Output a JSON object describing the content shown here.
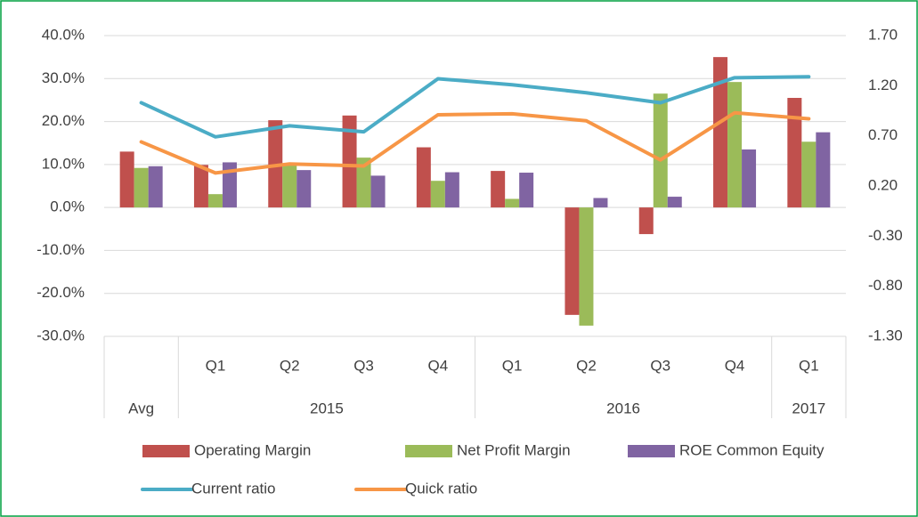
{
  "chart_data": {
    "type": "combo",
    "categories": [
      null,
      "Q1",
      "Q2",
      "Q3",
      "Q4",
      "Q1",
      "Q2",
      "Q3",
      "Q4",
      "Q1"
    ],
    "groups": [
      {
        "name": "Avg",
        "count": 1
      },
      {
        "name": "2015",
        "count": 4
      },
      {
        "name": "2016",
        "count": 4
      },
      {
        "name": "2017",
        "count": 1
      }
    ],
    "series": [
      {
        "name": "Operating Margin",
        "kind": "bar",
        "color": "#c0504d",
        "values": [
          13,
          9.9,
          20.3,
          21.4,
          14,
          8.5,
          -25,
          -6.2,
          35,
          25.5
        ]
      },
      {
        "name": "Net Profit Margin",
        "kind": "bar",
        "color": "#9bbb59",
        "values": [
          9.2,
          3.1,
          10,
          11.6,
          6.2,
          2,
          -27.5,
          26.5,
          29.2,
          15.3
        ]
      },
      {
        "name": "ROE Common Equity",
        "kind": "bar",
        "color": "#8064a2",
        "values": [
          9.6,
          10.5,
          8.7,
          7.4,
          8.2,
          8.1,
          2.2,
          2.5,
          13.5,
          17.5
        ]
      },
      {
        "name": "Current ratio",
        "kind": "line",
        "axis": "y2",
        "color": "#4bacc6",
        "values": [
          1.03,
          0.69,
          0.8,
          0.74,
          1.27,
          1.21,
          1.13,
          1.03,
          1.28,
          1.29
        ]
      },
      {
        "name": "Quick ratio",
        "kind": "line",
        "axis": "y2",
        "color": "#f79646",
        "values": [
          0.64,
          0.33,
          0.42,
          0.4,
          0.91,
          0.92,
          0.85,
          0.46,
          0.93,
          0.87
        ]
      }
    ],
    "ylim": [
      -30,
      40
    ],
    "yticks": [
      {
        "value": 40,
        "label": "40.0%"
      },
      {
        "value": 30,
        "label": "30.0%"
      },
      {
        "value": 20,
        "label": "20.0%"
      },
      {
        "value": 10,
        "label": "10.0%"
      },
      {
        "value": 0,
        "label": "0.0%"
      },
      {
        "value": -10,
        "label": "-10.0%"
      },
      {
        "value": -20,
        "label": "-20.0%"
      },
      {
        "value": -30,
        "label": "-30.0%"
      }
    ],
    "y2lim": [
      -1.3,
      1.7
    ],
    "y2ticks": [
      {
        "value": 1.7,
        "label": "1.70"
      },
      {
        "value": 1.2,
        "label": "1.20"
      },
      {
        "value": 0.7,
        "label": "0.70"
      },
      {
        "value": 0.2,
        "label": "0.20"
      },
      {
        "value": -0.3,
        "label": "-0.30"
      },
      {
        "value": -0.8,
        "label": "-0.80"
      },
      {
        "value": -1.3,
        "label": "-1.30"
      }
    ],
    "grid": true,
    "legend": "bottom"
  }
}
